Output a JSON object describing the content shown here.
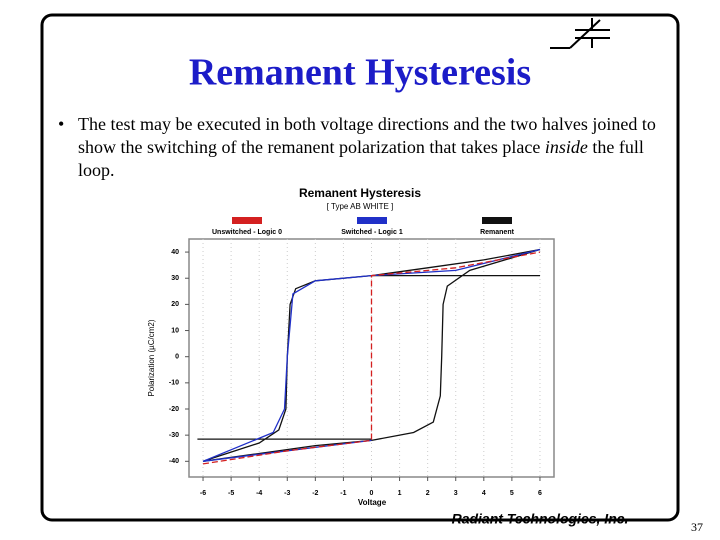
{
  "slide": {
    "title": "Remanent Hysteresis",
    "bullet": {
      "before": "The test may be executed in both voltage directions and the two halves joined to show the switching of the remanent polarization that takes place ",
      "emphasis": "inside",
      "after": " the full loop."
    },
    "footer": "Radiant Technologies, Inc.",
    "page_number": 37
  },
  "chart_data": {
    "type": "line",
    "title": "Remanent Hysteresis",
    "subtitle": "[ Type AB WHITE ]",
    "x_label": "Voltage",
    "y_label": "Polarization (µC/cm2)",
    "xlim": [
      -6.5,
      6.5
    ],
    "ylim": [
      -46,
      45
    ],
    "xticks": [
      -6,
      -5,
      -4,
      -3,
      -2,
      -1,
      0,
      1,
      2,
      3,
      4,
      5,
      6
    ],
    "yticks": [
      -40,
      -30,
      -20,
      -10,
      0,
      10,
      20,
      30,
      40
    ],
    "grid": true,
    "series": [
      {
        "name": "Unswitched - Logic 0",
        "color": "#d42020",
        "dashed": true,
        "x": [
          -6,
          -3,
          0,
          0,
          3,
          6
        ],
        "values": [
          -41,
          -36,
          -32,
          31,
          34,
          40
        ]
      },
      {
        "name": "Switched - Logic 1",
        "color": "#2030c8",
        "dashed": false,
        "x": [
          6,
          3,
          0,
          -2,
          -2.8,
          -3,
          -3.1,
          -3.5,
          -6,
          -3,
          0
        ],
        "values": [
          41,
          33,
          31,
          29,
          24,
          0,
          -20,
          -29,
          -40,
          -36,
          -32
        ]
      },
      {
        "name": "Remanent",
        "color": "#111111",
        "dashed": false,
        "x": [
          -6,
          -4,
          -2,
          0,
          1.5,
          2.2,
          2.45,
          2.5,
          2.55,
          2.7,
          3.5,
          6,
          4,
          2,
          0,
          -2,
          -2.7,
          -2.9,
          -3,
          -3.05,
          -3.3,
          -4,
          -6,
          null,
          0,
          6,
          null,
          -6.2,
          0
        ],
        "values": [
          -40,
          -37,
          -34,
          -32,
          -29,
          -25,
          -15,
          0,
          20,
          27,
          33,
          41,
          37,
          34,
          31,
          29,
          26,
          20,
          0,
          -20,
          -28,
          -33,
          -40,
          null,
          31,
          31,
          null,
          -31.5,
          -31.5
        ]
      }
    ]
  }
}
